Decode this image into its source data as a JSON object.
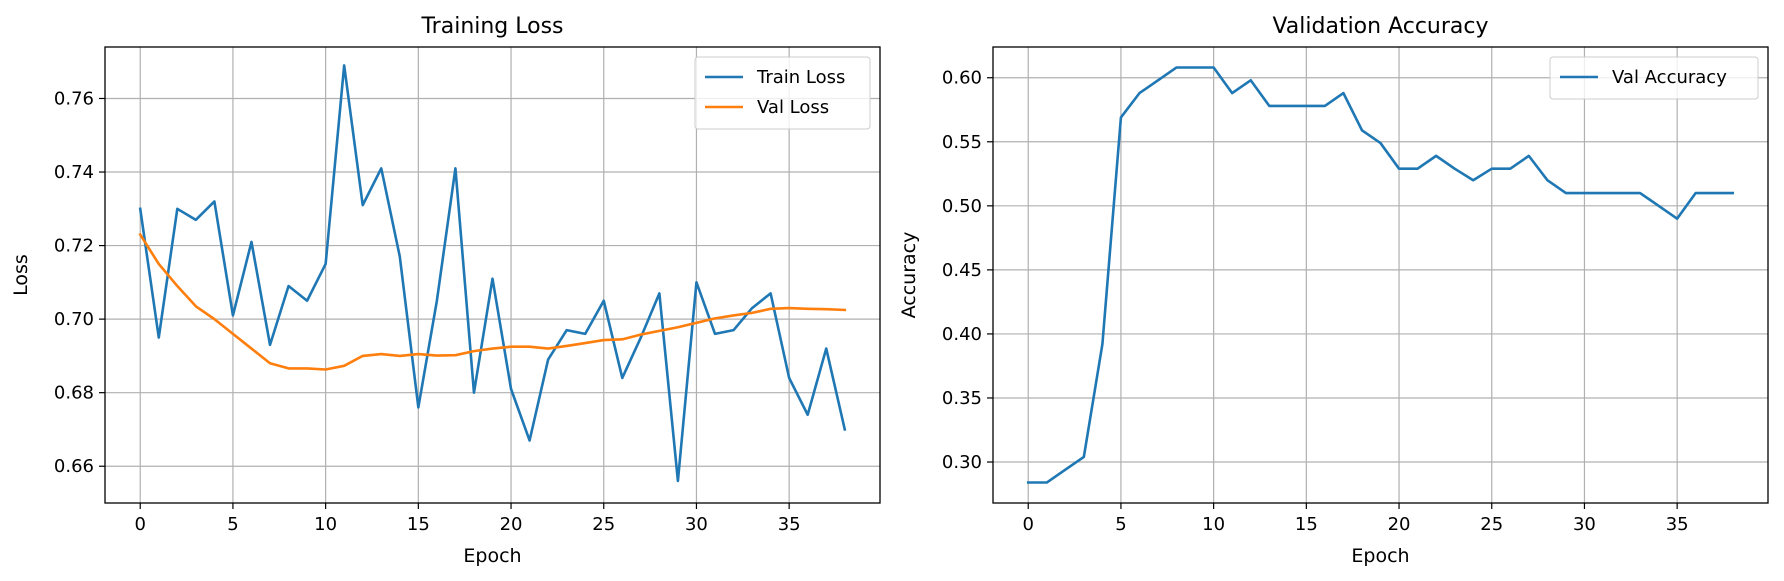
{
  "chart_data": [
    {
      "type": "line",
      "title": "Training Loss",
      "xlabel": "Epoch",
      "ylabel": "Loss",
      "xlim": [
        -1.9,
        39.9
      ],
      "ylim": [
        0.65,
        0.774
      ],
      "xticks": [
        0,
        5,
        10,
        15,
        20,
        25,
        30,
        35
      ],
      "yticks": [
        0.66,
        0.68,
        0.7,
        0.72,
        0.74,
        0.76
      ],
      "ytick_decimals": 2,
      "grid": true,
      "legend_position": "upper right",
      "x": [
        0,
        1,
        2,
        3,
        4,
        5,
        6,
        7,
        8,
        9,
        10,
        11,
        12,
        13,
        14,
        15,
        16,
        17,
        18,
        19,
        20,
        21,
        22,
        23,
        24,
        25,
        26,
        27,
        28,
        29,
        30,
        31,
        32,
        33,
        34,
        35,
        36,
        37,
        38
      ],
      "series": [
        {
          "name": "Train Loss",
          "color": "#1f77b4",
          "values": [
            0.73,
            0.695,
            0.73,
            0.727,
            0.732,
            0.701,
            0.721,
            0.693,
            0.709,
            0.705,
            0.715,
            0.769,
            0.731,
            0.741,
            0.717,
            0.676,
            0.705,
            0.741,
            0.68,
            0.711,
            0.681,
            0.667,
            0.689,
            0.697,
            0.696,
            0.705,
            0.684,
            0.695,
            0.707,
            0.656,
            0.71,
            0.696,
            0.697,
            0.703,
            0.707,
            0.684,
            0.674,
            0.692,
            0.67
          ]
        },
        {
          "name": "Val Loss",
          "color": "#ff7f0e",
          "values": [
            0.723,
            0.715,
            0.709,
            0.7035,
            0.7,
            0.696,
            0.692,
            0.688,
            0.6866,
            0.6866,
            0.6863,
            0.6873,
            0.69,
            0.6905,
            0.69,
            0.6905,
            0.6901,
            0.6902,
            0.6913,
            0.692,
            0.6925,
            0.6925,
            0.692,
            0.6927,
            0.6935,
            0.6943,
            0.6945,
            0.6958,
            0.6968,
            0.6978,
            0.699,
            0.7002,
            0.701,
            0.7017,
            0.7028,
            0.703,
            0.7028,
            0.7027,
            0.7025
          ]
        }
      ]
    },
    {
      "type": "line",
      "title": "Validation Accuracy",
      "xlabel": "Epoch",
      "ylabel": "Accuracy",
      "xlim": [
        -1.9,
        39.9
      ],
      "ylim": [
        0.268,
        0.624
      ],
      "xticks": [
        0,
        5,
        10,
        15,
        20,
        25,
        30,
        35
      ],
      "yticks": [
        0.3,
        0.35,
        0.4,
        0.45,
        0.5,
        0.55,
        0.6
      ],
      "ytick_decimals": 2,
      "grid": true,
      "legend_position": "upper right",
      "x": [
        0,
        1,
        2,
        3,
        4,
        5,
        6,
        7,
        8,
        9,
        10,
        11,
        12,
        13,
        14,
        15,
        16,
        17,
        18,
        19,
        20,
        21,
        22,
        23,
        24,
        25,
        26,
        27,
        28,
        29,
        30,
        31,
        32,
        33,
        34,
        35,
        36,
        37,
        38
      ],
      "series": [
        {
          "name": "Val Accuracy",
          "color": "#1f77b4",
          "values": [
            0.284,
            0.284,
            0.294,
            0.304,
            0.392,
            0.569,
            0.588,
            0.598,
            0.608,
            0.608,
            0.608,
            0.588,
            0.598,
            0.578,
            0.578,
            0.578,
            0.578,
            0.588,
            0.559,
            0.549,
            0.529,
            0.529,
            0.539,
            0.529,
            0.52,
            0.529,
            0.529,
            0.539,
            0.52,
            0.51,
            0.51,
            0.51,
            0.51,
            0.51,
            0.5,
            0.49,
            0.51,
            0.51,
            0.51
          ]
        }
      ]
    }
  ]
}
